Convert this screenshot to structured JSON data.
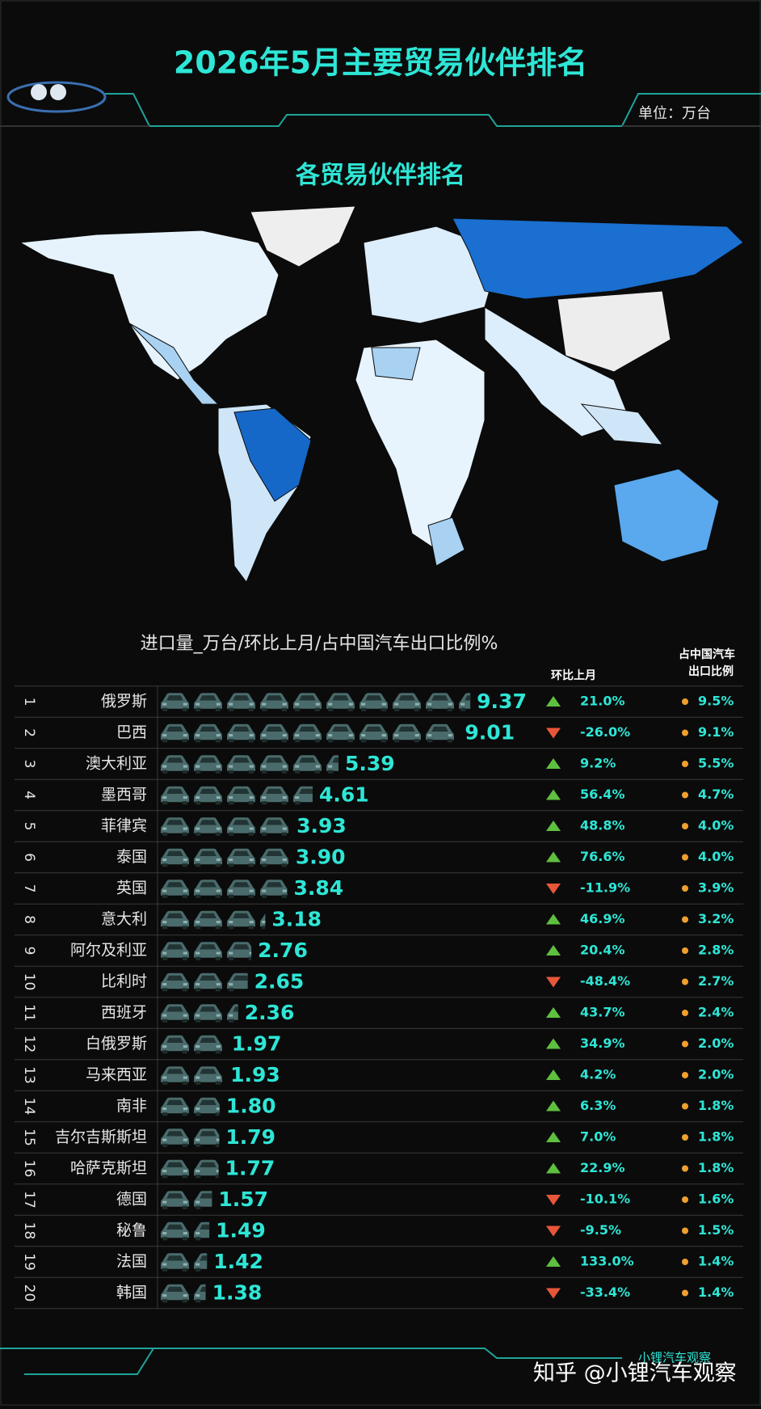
{
  "chart_data": {
    "type": "pictogram-bar",
    "title": "2026年5月主要贸易伙伴排名",
    "unit": "单位：万台",
    "subtitle": "各贸易伙伴排名",
    "caption": "进口量_万台/环比上月/占中国汽车出口比例%",
    "color": "#3f5f5f",
    "label_color": "#2ee6d6",
    "ranks": [
      1,
      2,
      3,
      4,
      5,
      6,
      7,
      8,
      9,
      10,
      11,
      12,
      13,
      14,
      15,
      16,
      17,
      18,
      19,
      20
    ],
    "categories": [
      "俄罗斯",
      "巴西",
      "澳大利亚",
      "墨西哥",
      "菲律宾",
      "泰国",
      "英国",
      "意大利",
      "阿尔及利亚",
      "比利时",
      "西班牙",
      "白俄罗斯",
      "马来西亚",
      "南非",
      "吉尔吉斯斯坦",
      "哈萨克斯坦",
      "德国",
      "秘鲁",
      "法国",
      "韩国"
    ],
    "values": [
      9.37,
      9.01,
      5.39,
      4.61,
      3.93,
      3.9,
      3.84,
      3.18,
      2.76,
      2.65,
      2.36,
      1.97,
      1.93,
      1.8,
      1.79,
      1.77,
      1.57,
      1.49,
      1.42,
      1.38
    ],
    "value_labels": [
      "9.37",
      "9.01",
      "5.39",
      "4.61",
      "3.93",
      "3.90",
      "3.84",
      "3.18",
      "2.76",
      "2.65",
      "2.36",
      "1.97",
      "1.93",
      "1.80",
      "1.79",
      "1.77",
      "1.57",
      "1.49",
      "1.42",
      "1.38"
    ],
    "mom": {
      "header": "环比上月",
      "up_color": "#5fbf3f",
      "down_color": "#e8563a",
      "values": [
        21.0,
        -26.0,
        9.2,
        56.4,
        48.8,
        76.6,
        -11.9,
        46.9,
        20.4,
        -48.4,
        43.7,
        34.9,
        4.2,
        6.3,
        7.0,
        22.9,
        -10.1,
        -9.5,
        133.0,
        -33.4
      ],
      "value_labels": [
        "21.0%",
        "-26.0%",
        "9.2%",
        "56.4%",
        "48.8%",
        "76.6%",
        "-11.9%",
        "46.9%",
        "20.4%",
        "-48.4%",
        "43.7%",
        "34.9%",
        "4.2%",
        "6.3%",
        "7.0%",
        "22.9%",
        "-10.1%",
        "-9.5%",
        "133.0%",
        "-33.4%"
      ]
    },
    "share": {
      "header": [
        "占中国汽车",
        "出口比例"
      ],
      "dot_color": "#f0a030",
      "values": [
        9.5,
        9.1,
        5.5,
        4.7,
        4.0,
        4.0,
        3.9,
        3.2,
        2.8,
        2.7,
        2.4,
        2.0,
        2.0,
        1.8,
        1.8,
        1.8,
        1.6,
        1.5,
        1.4,
        1.4
      ],
      "value_labels": [
        "9.5%",
        "9.1%",
        "5.5%",
        "4.7%",
        "4.0%",
        "4.0%",
        "3.9%",
        "3.2%",
        "2.8%",
        "2.7%",
        "2.4%",
        "2.0%",
        "2.0%",
        "1.8%",
        "1.8%",
        "1.8%",
        "1.6%",
        "1.5%",
        "1.4%",
        "1.4%"
      ]
    },
    "brand": "小锂汽车观察",
    "watermark": "知乎 @小锂汽车观察"
  }
}
